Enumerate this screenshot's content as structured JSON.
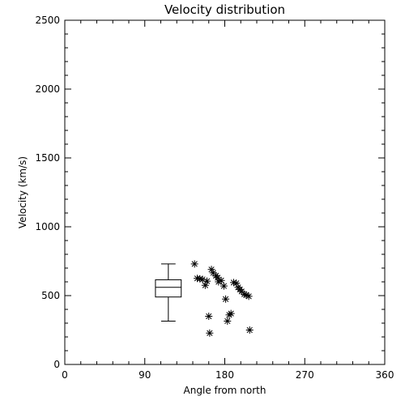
{
  "chart_data": {
    "type": "scatter",
    "title": "Velocity distribution",
    "xlabel": "Angle from north",
    "ylabel": "Velocity (km/s)",
    "xlim": [
      0,
      360
    ],
    "ylim": [
      0,
      2500
    ],
    "x_ticks": [
      "0",
      "90",
      "180",
      "270",
      "360"
    ],
    "y_ticks": [
      "0",
      "500",
      "1000",
      "1500",
      "2000",
      "2500"
    ],
    "grid": false,
    "legend": "none",
    "marker": "asterisk",
    "colors": {
      "foreground": "#000000",
      "background": "#ffffff"
    },
    "points": [
      {
        "x": 146,
        "y": 730
      },
      {
        "x": 149,
        "y": 625
      },
      {
        "x": 152,
        "y": 622
      },
      {
        "x": 155,
        "y": 618
      },
      {
        "x": 158,
        "y": 575
      },
      {
        "x": 160,
        "y": 605
      },
      {
        "x": 162,
        "y": 350
      },
      {
        "x": 163,
        "y": 228
      },
      {
        "x": 165,
        "y": 690
      },
      {
        "x": 167,
        "y": 665
      },
      {
        "x": 170,
        "y": 645
      },
      {
        "x": 172,
        "y": 630
      },
      {
        "x": 173,
        "y": 600
      },
      {
        "x": 176,
        "y": 610
      },
      {
        "x": 179,
        "y": 570
      },
      {
        "x": 181,
        "y": 475
      },
      {
        "x": 183,
        "y": 315
      },
      {
        "x": 185,
        "y": 360
      },
      {
        "x": 187,
        "y": 370
      },
      {
        "x": 190,
        "y": 595
      },
      {
        "x": 193,
        "y": 590
      },
      {
        "x": 195,
        "y": 560
      },
      {
        "x": 197,
        "y": 545
      },
      {
        "x": 199,
        "y": 530
      },
      {
        "x": 202,
        "y": 510
      },
      {
        "x": 204,
        "y": 505
      },
      {
        "x": 207,
        "y": 495
      },
      {
        "x": 208,
        "y": 250
      }
    ],
    "boxplot": {
      "x_from": 102,
      "x_to": 131,
      "min": 315,
      "q1": 490,
      "median": 560,
      "q3": 615,
      "max": 730
    }
  }
}
